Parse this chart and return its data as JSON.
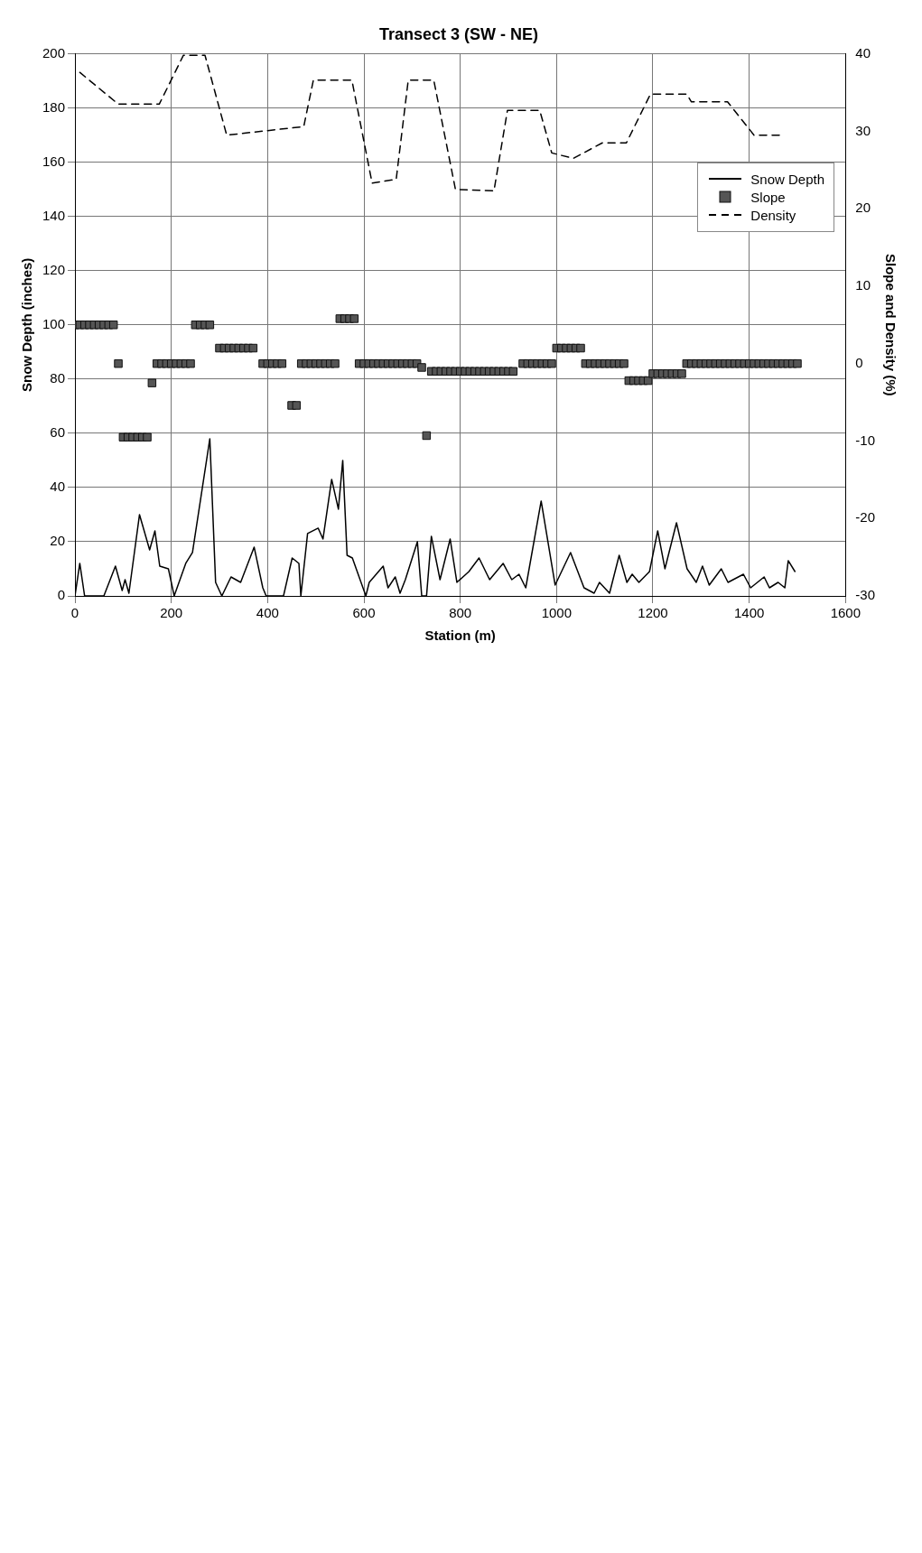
{
  "chart_data": {
    "type": "line",
    "title": "Transect 3 (SW - NE)",
    "xlabel": "Station (m)",
    "ylabel": "Snow Depth (inches)",
    "y2label": "Slope and Density (%)",
    "x": [
      0,
      10,
      20,
      30,
      40,
      50,
      60,
      70,
      80,
      90,
      100,
      110,
      120,
      130,
      140,
      150,
      160,
      170,
      180,
      190,
      200,
      210,
      220,
      230,
      240,
      250,
      260,
      270,
      280,
      290,
      300,
      310,
      320,
      330,
      340,
      350,
      360,
      370,
      380,
      390,
      400,
      410,
      420,
      430,
      440,
      450,
      460,
      470,
      480,
      490,
      500,
      510,
      520,
      530,
      540,
      550,
      560,
      570,
      580,
      590,
      600,
      610,
      620,
      630,
      640,
      650,
      660,
      670,
      680,
      690,
      700,
      710,
      720,
      730,
      740,
      750,
      760,
      770,
      780,
      790,
      800,
      810,
      820,
      830,
      840,
      850,
      860,
      870,
      880,
      890,
      900,
      910,
      920,
      930,
      940,
      950,
      960,
      970,
      980,
      990,
      1000,
      1010,
      1020,
      1030,
      1040,
      1050,
      1060,
      1070,
      1080,
      1090,
      1100,
      1110,
      1120,
      1130,
      1140,
      1150,
      1160,
      1170,
      1180,
      1190,
      1200,
      1210,
      1220,
      1230,
      1240,
      1250,
      1260,
      1270,
      1280,
      1290,
      1300,
      1310,
      1320,
      1330,
      1340,
      1350,
      1360,
      1370,
      1380,
      1390,
      1400,
      1410,
      1420,
      1430,
      1440,
      1450,
      1460,
      1470,
      1480,
      1490,
      1500
    ],
    "series": [
      {
        "name": "Snow Depth",
        "type": "line",
        "color": "#000000",
        "line_style": "solid",
        "marker": "none",
        "x": [
          0,
          10,
          20,
          60,
          84,
          98,
          104,
          112,
          134,
          155,
          166,
          176,
          194,
          206,
          230,
          244,
          280,
          292,
          305,
          324,
          344,
          372,
          390,
          397,
          433,
          451,
          465,
          469,
          483,
          505,
          515,
          533,
          547,
          556,
          565,
          576,
          604,
          611,
          640,
          650,
          665,
          675,
          686,
          711,
          720,
          730,
          740,
          758,
          779,
          793,
          818,
          839,
          861,
          889,
          907,
          922,
          936,
          968,
          997,
          1029,
          1057,
          1078,
          1089,
          1110,
          1130,
          1146,
          1157,
          1171,
          1193,
          1210,
          1225,
          1249,
          1271,
          1290,
          1303,
          1317,
          1342,
          1356,
          1388,
          1403,
          1431,
          1442,
          1460,
          1474,
          1481,
          1495
        ],
        "values": [
          0,
          12,
          0,
          0,
          11,
          2,
          6,
          1,
          30,
          17,
          24,
          11,
          10,
          0,
          12,
          16,
          58,
          5,
          0,
          7,
          5,
          18,
          3,
          0,
          0,
          14,
          12,
          0,
          23,
          25,
          21,
          43,
          32,
          50,
          15,
          14,
          0,
          5,
          11,
          3,
          7,
          1,
          6,
          20,
          0,
          0,
          22,
          6,
          21,
          5,
          9,
          14,
          6,
          12,
          6,
          8,
          3,
          35,
          4,
          16,
          3,
          1,
          5,
          1,
          15,
          5,
          8,
          5,
          9,
          24,
          10,
          27,
          10,
          5,
          11,
          4,
          10,
          5,
          8,
          3,
          7,
          3,
          5,
          3,
          13,
          9
        ]
      },
      {
        "name": "Slope",
        "type": "scatter",
        "axis": "y2",
        "color": "#555555",
        "marker": "square",
        "values": [
          5,
          5,
          5,
          5,
          5,
          5,
          5,
          5,
          5,
          0,
          -9.5,
          -9.5,
          -9.5,
          -9.5,
          -9.5,
          -9.5,
          -2.5,
          0,
          0,
          0,
          0,
          0,
          0,
          0,
          0,
          5,
          5,
          5,
          5,
          null,
          2,
          2,
          2,
          2,
          2,
          2,
          2,
          2,
          null,
          0,
          0,
          0,
          0,
          0,
          null,
          -5.4,
          -5.4,
          0,
          0,
          0,
          0,
          0,
          0,
          0,
          0,
          5.8,
          5.8,
          5.8,
          5.8,
          0,
          0,
          0,
          0,
          0,
          0,
          0,
          0,
          0,
          0,
          0,
          0,
          0,
          -0.5,
          -9.3,
          -1,
          -1,
          -1,
          -1,
          -1,
          -1,
          -1,
          -1,
          -1,
          -1,
          -1,
          -1,
          -1,
          -1,
          -1,
          -1,
          -1,
          -1,
          null,
          0,
          0,
          0,
          0,
          0,
          0,
          0,
          2,
          2,
          2,
          2,
          2,
          2,
          0,
          0,
          0,
          0,
          0,
          0,
          0,
          0,
          0,
          -2.2,
          -2.2,
          -2.2,
          -2.2,
          -2.2,
          -1.3,
          -1.3,
          -1.3,
          -1.3,
          -1.3,
          -1.3,
          -1.3,
          0,
          0,
          0,
          0,
          0,
          0,
          0,
          0,
          0,
          0,
          0,
          0,
          0,
          0,
          0,
          0,
          0,
          0,
          0,
          0,
          0,
          0,
          0,
          0
        ]
      },
      {
        "name": "Density",
        "type": "line",
        "axis": "y2",
        "color": "#000000",
        "line_style": "dashed",
        "marker": "none",
        "x": [
          10,
          90,
          175,
          210,
          225,
          270,
          315,
          475,
          495,
          575,
          617,
          667,
          692,
          745,
          790,
          870,
          898,
          965,
          990,
          1035,
          1095,
          1145,
          1195,
          1270,
          1280,
          1355,
          1410,
          1470
        ],
        "values": [
          37.6,
          33.5,
          33.5,
          37.9,
          39.8,
          39.8,
          29.5,
          30.6,
          36.6,
          36.6,
          23.3,
          23.8,
          36.6,
          36.6,
          22.5,
          22.3,
          32.7,
          32.7,
          27.2,
          26.5,
          28.5,
          28.5,
          34.8,
          34.8,
          33.8,
          33.8,
          29.5,
          29.5
        ]
      }
    ],
    "xlim": [
      0,
      1600
    ],
    "xticks": [
      0,
      200,
      400,
      600,
      800,
      1000,
      1200,
      1400,
      1600
    ],
    "ylim": [
      0,
      200
    ],
    "yticks": [
      0,
      20,
      40,
      60,
      80,
      100,
      120,
      140,
      160,
      180,
      200
    ],
    "y2lim": [
      -30,
      40
    ],
    "y2ticks": [
      -30,
      -20,
      -10,
      0,
      10,
      20,
      30,
      40
    ],
    "grid": true,
    "legend": "top right"
  }
}
